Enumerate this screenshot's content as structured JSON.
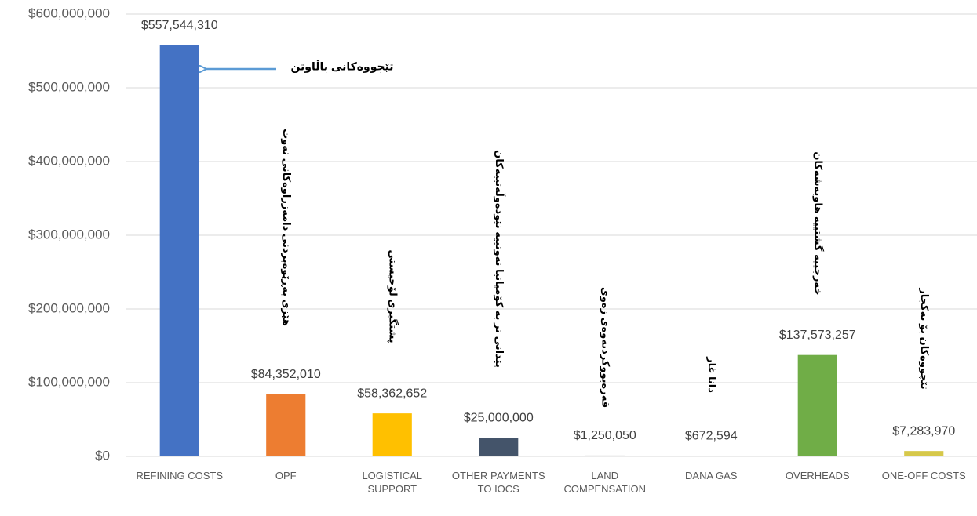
{
  "chart_data": {
    "type": "bar",
    "categories": [
      "REFINING COSTS",
      "OPF",
      "LOGISTICAL SUPPORT",
      "OTHER PAYMENTS TO IOCS",
      "LAND COMPENSATION",
      "DANA GAS",
      "OVERHEADS",
      "ONE-OFF COSTS"
    ],
    "values": [
      557544310,
      84352010,
      58362652,
      25000000,
      1250050,
      672594,
      137573257,
      7283970
    ],
    "value_labels": [
      "$557,544,310",
      "$84,352,010",
      "$58,362,652",
      "$25,000,000",
      "$1,250,050",
      "$672,594",
      "$137,573,257",
      "$7,283,970"
    ],
    "colors": [
      "#4472c4",
      "#ed7d31",
      "#ffc000",
      "#44546a",
      "#c9c9c9",
      "#d9d9d9",
      "#70ad47",
      "#d6c84a"
    ],
    "ylim": [
      0,
      600000000
    ],
    "yticks": [
      {
        "value": 0,
        "label": "$0"
      },
      {
        "value": 100000000,
        "label": "$100,000,000"
      },
      {
        "value": 200000000,
        "label": "$200,000,000"
      },
      {
        "value": 300000000,
        "label": "$300,000,000"
      },
      {
        "value": 400000000,
        "label": "$400,000,000"
      },
      {
        "value": 500000000,
        "label": "$500,000,000"
      },
      {
        "value": 600000000,
        "label": "$600,000,000"
      }
    ],
    "grid": true,
    "annotations": [
      "تێچووەکانی پاڵاوتن",
      "هێزی بەڕێوەبردنی دامەزراوەکانی نەوت",
      "پشتگیری لۆجیستی",
      "پێدانی تر بە کۆمپانیا نەوتییە نێودەوڵەتییەکان",
      "قەرەبووکردنەوەی زەوی",
      "دانا غاز",
      "خەرجییە گشتییە هاوبەشەکان",
      "تێچووەکان بۆ یەکجار"
    ]
  }
}
